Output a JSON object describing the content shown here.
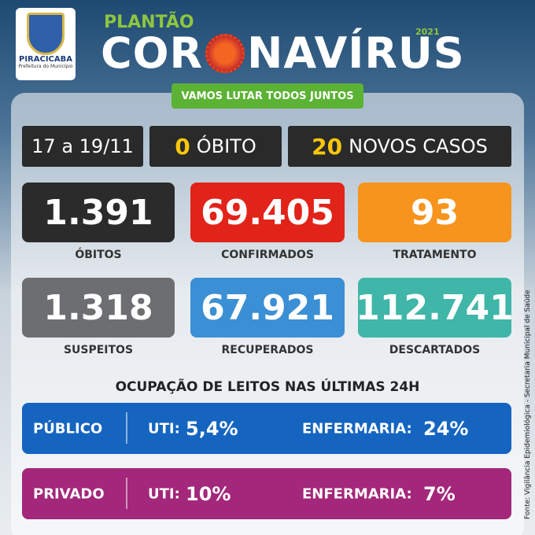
{
  "logo": {
    "city": "PIRACICABA",
    "subtitle": "Prefeitura do Município"
  },
  "header": {
    "kicker": "PLANTÃO",
    "title_left": "COR",
    "title_right": "NAVÍRUS",
    "year": "2021",
    "slogan": "VAMOS LUTAR TODOS JUNTOS"
  },
  "summary": {
    "period": "17 a 19/11",
    "deaths_count": "0",
    "deaths_label": "ÓBITO",
    "cases_count": "20",
    "cases_label": "NOVOS CASOS"
  },
  "stats": [
    {
      "value": "1.391",
      "label": "ÓBITOS"
    },
    {
      "value": "69.405",
      "label": "CONFIRMADOS"
    },
    {
      "value": "93",
      "label": "TRATAMENTO"
    },
    {
      "value": "1.318",
      "label": "SUSPEITOS"
    },
    {
      "value": "67.921",
      "label": "RECUPERADOS"
    },
    {
      "value": "112.741",
      "label": "DESCARTADOS"
    }
  ],
  "beds": {
    "title": "OCUPAÇÃO DE LEITOS NAS ÚLTIMAS 24H",
    "rows": [
      {
        "sector": "PÚBLICO",
        "uti_label": "UTI:",
        "uti": "5,4%",
        "ward_label": "ENFERMARIA:",
        "ward": "24%"
      },
      {
        "sector": "PRIVADO",
        "uti_label": "UTI:",
        "uti": "10%",
        "ward_label": "ENFERMARIA:",
        "ward": "7%"
      }
    ]
  },
  "source": "Fonte: Vigilância Epidemiológica - Secretaria Municipal de Saúde"
}
